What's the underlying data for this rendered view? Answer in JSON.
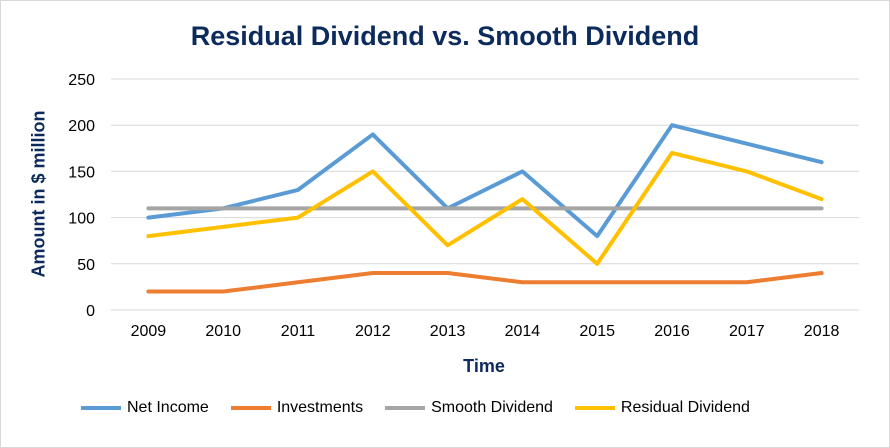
{
  "chart_data": {
    "type": "line",
    "title": "Residual Dividend vs. Smooth Dividend",
    "xlabel": "Time",
    "ylabel": "Amount in $ million",
    "categories": [
      "2009",
      "2010",
      "2011",
      "2012",
      "2013",
      "2014",
      "2015",
      "2016",
      "2017",
      "2018"
    ],
    "ylim": [
      0,
      250
    ],
    "yticks": [
      0,
      50,
      100,
      150,
      200,
      250
    ],
    "grid": true,
    "legend_position": "bottom",
    "series": [
      {
        "name": "Net Income",
        "color": "#5B9BD5",
        "values": [
          100,
          110,
          130,
          190,
          110,
          150,
          80,
          200,
          180,
          160
        ]
      },
      {
        "name": "Investments",
        "color": "#ED7D31",
        "values": [
          20,
          20,
          30,
          40,
          40,
          30,
          30,
          30,
          30,
          40
        ]
      },
      {
        "name": "Smooth Dividend",
        "color": "#A5A5A5",
        "values": [
          110,
          110,
          110,
          110,
          110,
          110,
          110,
          110,
          110,
          110
        ]
      },
      {
        "name": "Residual Dividend",
        "color": "#FFC000",
        "values": [
          80,
          90,
          100,
          150,
          70,
          120,
          50,
          170,
          150,
          120
        ]
      }
    ]
  }
}
